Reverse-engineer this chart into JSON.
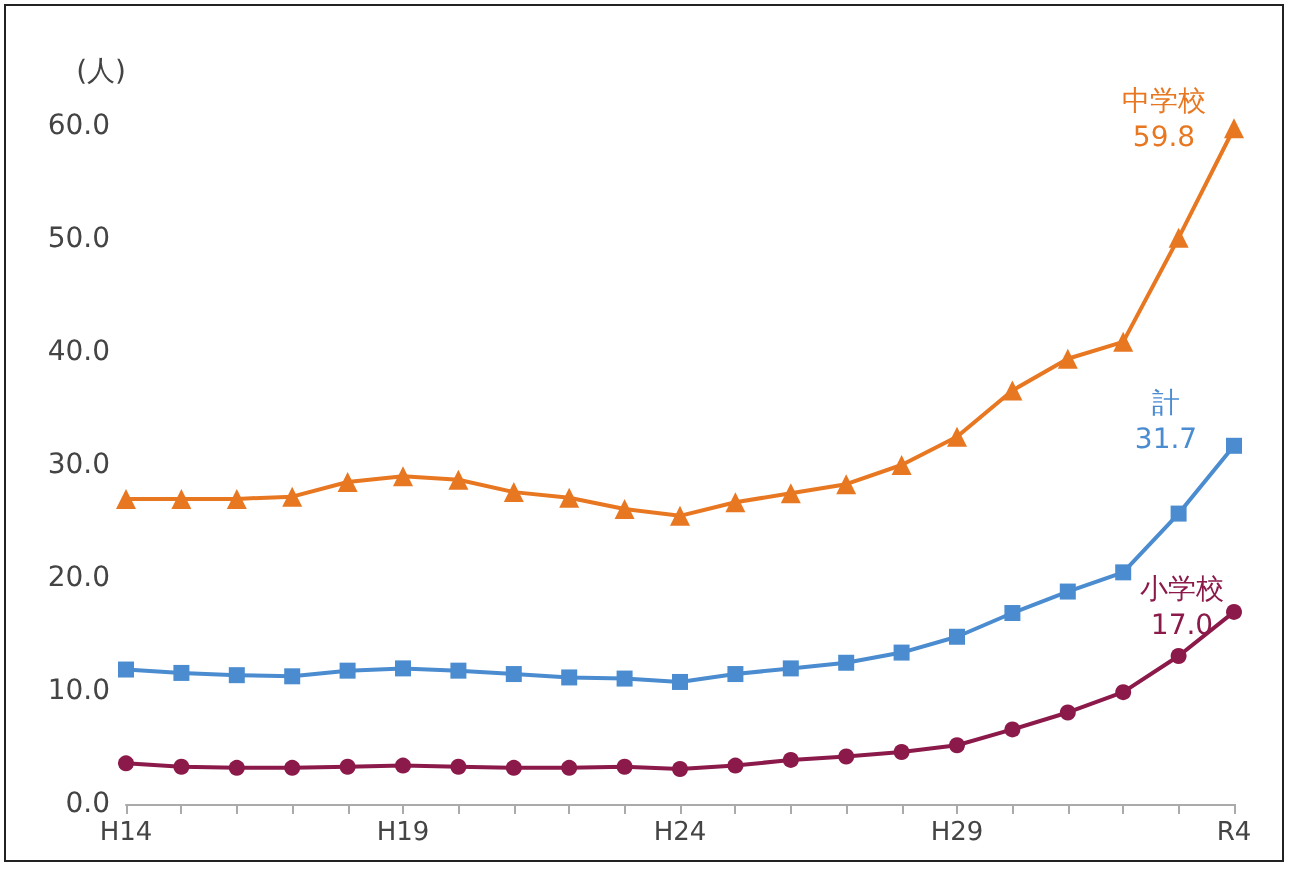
{
  "chart_data": {
    "type": "line",
    "ylabel": "(人)",
    "categories": [
      "H14",
      null,
      null,
      null,
      null,
      "H19",
      null,
      null,
      null,
      null,
      "H24",
      null,
      null,
      null,
      null,
      "H29",
      null,
      null,
      null,
      null,
      "R4"
    ],
    "series": [
      {
        "name": "中学校",
        "color": "#e87722",
        "marker": "triangle",
        "values": [
          27.0,
          27.0,
          27.0,
          27.2,
          28.5,
          29.0,
          28.7,
          27.6,
          27.1,
          26.1,
          25.5,
          26.7,
          27.5,
          28.3,
          30.0,
          32.5,
          36.6,
          39.4,
          40.9,
          50.1,
          59.8
        ],
        "value_labels": [
          null,
          null,
          null,
          null,
          null,
          null,
          null,
          null,
          null,
          null,
          null,
          null,
          null,
          null,
          null,
          null,
          null,
          null,
          null,
          null,
          "59.8"
        ]
      },
      {
        "name": "計",
        "color": "#4a8ccf",
        "marker": "square",
        "values": [
          11.9,
          11.6,
          11.4,
          11.3,
          11.8,
          12.0,
          11.8,
          11.5,
          11.2,
          11.1,
          10.8,
          11.5,
          12.0,
          12.5,
          13.4,
          14.8,
          16.9,
          18.8,
          20.5,
          25.7,
          31.7
        ],
        "value_labels": [
          null,
          null,
          null,
          null,
          null,
          null,
          null,
          null,
          null,
          null,
          null,
          null,
          null,
          null,
          null,
          null,
          null,
          null,
          null,
          null,
          "31.7"
        ]
      },
      {
        "name": "小学校",
        "color": "#8b1a4a",
        "marker": "circle",
        "values": [
          3.6,
          3.3,
          3.2,
          3.2,
          3.3,
          3.4,
          3.3,
          3.2,
          3.2,
          3.3,
          3.1,
          3.4,
          3.9,
          4.2,
          4.6,
          5.2,
          6.6,
          8.1,
          9.9,
          13.1,
          17.0
        ],
        "value_labels": [
          null,
          null,
          null,
          null,
          null,
          null,
          null,
          null,
          null,
          null,
          null,
          null,
          null,
          null,
          null,
          null,
          null,
          null,
          null,
          null,
          "17.0"
        ]
      }
    ],
    "ylim": [
      0,
      60
    ],
    "yticks": [
      {
        "value": 0,
        "label": "0.0"
      },
      {
        "value": 10,
        "label": "10.0"
      },
      {
        "value": 20,
        "label": "20.0"
      },
      {
        "value": 30,
        "label": "30.0"
      },
      {
        "value": 40,
        "label": "40.0"
      },
      {
        "value": 50,
        "label": "50.0"
      },
      {
        "value": 60,
        "label": "60.0"
      }
    ],
    "grid": false,
    "legend": false
  }
}
